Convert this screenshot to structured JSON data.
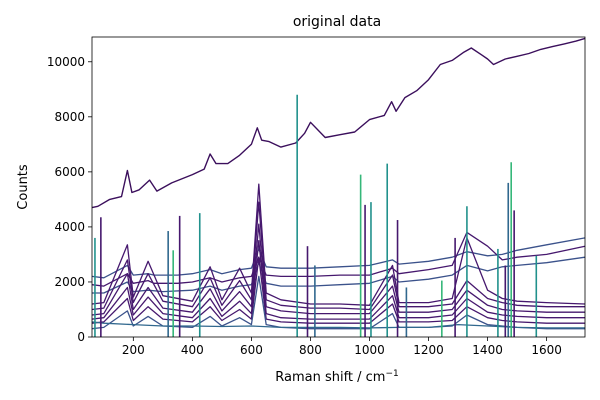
{
  "chart_data": {
    "type": "line",
    "title": "original data",
    "xlabel": "Raman shift / cm",
    "xlabel_superscript": "−1",
    "ylabel": "Counts",
    "xlim": [
      60,
      1730
    ],
    "ylim": [
      0,
      10900
    ],
    "x_ticks": [
      200,
      400,
      600,
      800,
      1000,
      1200,
      1400,
      1600
    ],
    "y_ticks": [
      0,
      2000,
      4000,
      6000,
      8000,
      10000
    ],
    "grid": false,
    "legend": "none",
    "colors": {
      "top_trace": "#3b0f5c",
      "trace_dark": "#46186e",
      "trace_mid": "#3b528b",
      "trace_blue": "#31688e",
      "trace_teal": "#21918c",
      "trace_green": "#35b779"
    },
    "series": [
      {
        "x": [
          60,
          80,
          120,
          160,
          180,
          195,
          220,
          255,
          280,
          330,
          400,
          440,
          460,
          480,
          520,
          560,
          600,
          620,
          635,
          660,
          700,
          750,
          780,
          800,
          850,
          900,
          950,
          1000,
          1050,
          1075,
          1090,
          1120,
          1160,
          1200,
          1240,
          1280,
          1320,
          1345,
          1380,
          1400,
          1420,
          1460,
          1500,
          1540,
          1580,
          1620,
          1660,
          1700,
          1730
        ],
        "y": [
          4700,
          4750,
          5000,
          5100,
          6050,
          5250,
          5350,
          5700,
          5300,
          5600,
          5900,
          6100,
          6650,
          6300,
          6300,
          6600,
          7000,
          7600,
          7150,
          7100,
          6900,
          7050,
          7400,
          7800,
          7250,
          7350,
          7450,
          7900,
          8050,
          8550,
          8200,
          8700,
          8950,
          9350,
          9900,
          10050,
          10350,
          10500,
          10250,
          10100,
          9900,
          10100,
          10200,
          10300,
          10450,
          10550,
          10650,
          10750,
          10850
        ]
      },
      {
        "x": [
          60,
          100,
          180,
          200,
          250,
          270,
          300,
          350,
          400,
          460,
          500,
          560,
          600,
          625,
          650,
          700,
          800,
          900,
          1000,
          1078,
          1100,
          1200,
          1280,
          1330,
          1400,
          1450,
          1500,
          1600,
          1730
        ],
        "y": [
          2200,
          2150,
          2600,
          2250,
          2300,
          2250,
          2250,
          2250,
          2300,
          2450,
          2300,
          2450,
          2500,
          3200,
          2550,
          2500,
          2500,
          2550,
          2600,
          2800,
          2650,
          2750,
          2900,
          3100,
          2950,
          3000,
          3150,
          3350,
          3600
        ]
      },
      {
        "x": [
          60,
          100,
          180,
          200,
          250,
          270,
          300,
          350,
          400,
          460,
          500,
          560,
          600,
          625,
          650,
          700,
          800,
          900,
          1000,
          1078,
          1100,
          1200,
          1280,
          1330,
          1400,
          1450,
          1500,
          1600,
          1730
        ],
        "y": [
          1900,
          1850,
          2300,
          1950,
          2050,
          1950,
          1950,
          1950,
          2000,
          2150,
          2000,
          2150,
          2200,
          2900,
          2250,
          2200,
          2200,
          2250,
          2250,
          2500,
          2300,
          2450,
          2600,
          3800,
          3300,
          2800,
          2900,
          3000,
          3300
        ]
      },
      {
        "x": [
          60,
          100,
          180,
          200,
          250,
          300,
          400,
          460,
          500,
          560,
          600,
          625,
          650,
          700,
          800,
          900,
          1000,
          1078,
          1100,
          1200,
          1280,
          1330,
          1400,
          1450,
          1500,
          1600,
          1730
        ],
        "y": [
          1600,
          1600,
          2000,
          1650,
          1700,
          1650,
          1700,
          1850,
          1700,
          1850,
          1900,
          2700,
          1950,
          1850,
          1850,
          1900,
          1950,
          2200,
          2000,
          2100,
          2250,
          2600,
          2400,
          2550,
          2600,
          2700,
          2900
        ]
      },
      {
        "x": [
          60,
          100,
          180,
          200,
          250,
          300,
          400,
          460,
          500,
          560,
          600,
          625,
          650,
          700,
          800,
          900,
          1000,
          1078,
          1100,
          1200,
          1280,
          1330,
          1400,
          1450,
          1500,
          1600,
          1730
        ],
        "y": [
          1200,
          1250,
          3350,
          1450,
          2750,
          1500,
          1300,
          2550,
          1350,
          2500,
          1600,
          5550,
          1600,
          1350,
          1200,
          1200,
          1150,
          2600,
          1250,
          1250,
          1400,
          3600,
          1700,
          1400,
          1300,
          1250,
          1200
        ]
      },
      {
        "x": [
          60,
          100,
          180,
          200,
          250,
          300,
          400,
          460,
          500,
          560,
          600,
          625,
          650,
          700,
          800,
          900,
          1000,
          1078,
          1100,
          1200,
          1280,
          1330,
          1400,
          1450,
          1500,
          1600,
          1730
        ],
        "y": [
          1000,
          1050,
          2800,
          1250,
          2300,
          1300,
          1100,
          2150,
          1150,
          2050,
          1350,
          4900,
          1350,
          1150,
          1050,
          1050,
          1000,
          2250,
          1100,
          1100,
          1200,
          2050,
          1400,
          1250,
          1150,
          1100,
          1100
        ]
      },
      {
        "x": [
          60,
          100,
          180,
          200,
          250,
          300,
          400,
          460,
          500,
          560,
          600,
          625,
          650,
          700,
          800,
          900,
          1000,
          1078,
          1100,
          1200,
          1280,
          1330,
          1400,
          1450,
          1500,
          1600,
          1730
        ],
        "y": [
          800,
          850,
          2300,
          1000,
          1800,
          1050,
          900,
          1750,
          950,
          1650,
          1100,
          4100,
          1100,
          950,
          850,
          850,
          850,
          1850,
          900,
          900,
          1000,
          1700,
          1150,
          1000,
          950,
          900,
          900
        ]
      },
      {
        "x": [
          60,
          100,
          180,
          200,
          250,
          300,
          400,
          460,
          500,
          560,
          600,
          625,
          650,
          700,
          800,
          900,
          1000,
          1078,
          1100,
          1200,
          1280,
          1330,
          1400,
          1450,
          1500,
          1600,
          1730
        ],
        "y": [
          650,
          700,
          1800,
          800,
          1450,
          850,
          700,
          1400,
          750,
          1300,
          850,
          3500,
          850,
          700,
          650,
          650,
          650,
          1500,
          700,
          700,
          800,
          1400,
          900,
          800,
          750,
          700,
          700
        ]
      },
      {
        "x": [
          60,
          100,
          180,
          200,
          250,
          300,
          400,
          460,
          500,
          560,
          600,
          625,
          650,
          700,
          800,
          900,
          1000,
          1078,
          1100,
          1200,
          1280,
          1330,
          1400,
          1450,
          1500,
          1600,
          1730
        ],
        "y": [
          500,
          550,
          1400,
          600,
          1100,
          650,
          550,
          1100,
          600,
          1000,
          650,
          2900,
          650,
          550,
          500,
          500,
          500,
          1200,
          550,
          550,
          600,
          1100,
          700,
          600,
          550,
          500,
          500
        ]
      },
      {
        "x": [
          60,
          100,
          180,
          200,
          250,
          300,
          400,
          460,
          500,
          560,
          600,
          625,
          650,
          700,
          800,
          900,
          1000,
          1078,
          1100,
          1200,
          1280,
          1330,
          1400,
          1450,
          1500,
          1600,
          1730
        ],
        "y": [
          300,
          350,
          950,
          400,
          750,
          400,
          350,
          750,
          400,
          700,
          450,
          2200,
          450,
          350,
          300,
          300,
          300,
          850,
          350,
          350,
          400,
          800,
          450,
          400,
          350,
          300,
          300
        ]
      },
      {
        "x": [
          60,
          100,
          200,
          300,
          400,
          500,
          600,
          700,
          800,
          900,
          1000,
          1100,
          1200,
          1300,
          1400,
          1500,
          1600,
          1730
        ],
        "y": [
          550,
          500,
          450,
          400,
          400,
          380,
          400,
          350,
          350,
          350,
          330,
          350,
          350,
          450,
          400,
          350,
          330,
          330
        ]
      }
    ],
    "spikes": [
      {
        "x": 70,
        "y": 3600
      },
      {
        "x": 90,
        "y": 4350
      },
      {
        "x": 318,
        "y": 3850
      },
      {
        "x": 335,
        "y": 3150
      },
      {
        "x": 357,
        "y": 4400
      },
      {
        "x": 425,
        "y": 4500
      },
      {
        "x": 755,
        "y": 8800
      },
      {
        "x": 790,
        "y": 3300
      },
      {
        "x": 815,
        "y": 2600
      },
      {
        "x": 970,
        "y": 5900
      },
      {
        "x": 985,
        "y": 4800
      },
      {
        "x": 1005,
        "y": 4900
      },
      {
        "x": 1060,
        "y": 6300
      },
      {
        "x": 1095,
        "y": 4250
      },
      {
        "x": 1125,
        "y": 1800
      },
      {
        "x": 1245,
        "y": 2050
      },
      {
        "x": 1290,
        "y": 3600
      },
      {
        "x": 1330,
        "y": 4750
      },
      {
        "x": 1435,
        "y": 3200
      },
      {
        "x": 1460,
        "y": 2600
      },
      {
        "x": 1470,
        "y": 5600
      },
      {
        "x": 1480,
        "y": 6350
      },
      {
        "x": 1490,
        "y": 4600
      },
      {
        "x": 1565,
        "y": 2950
      }
    ]
  }
}
